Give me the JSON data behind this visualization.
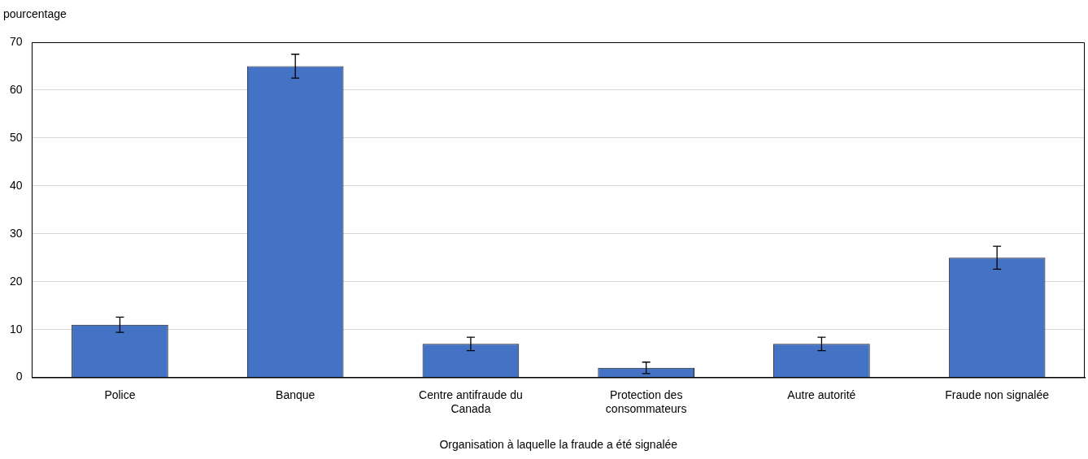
{
  "chart_data": {
    "type": "bar",
    "ylabel": "pourcentage",
    "xlabel": "Organisation à laquelle la fraude a été signalée",
    "categories": [
      "Police",
      "Banque",
      "Centre antifraude du Canada",
      "Protection des consommateurs",
      "Autre autorité",
      "Fraude non signalée"
    ],
    "values": [
      11,
      65,
      7,
      2,
      7,
      25
    ],
    "errors": [
      1.6,
      2.5,
      1.4,
      1.2,
      1.4,
      2.4
    ],
    "color": "#4472c4",
    "ylim": [
      0,
      70
    ],
    "yticks": [
      0,
      10,
      20,
      30,
      40,
      50,
      60,
      70
    ],
    "grid": "y",
    "legend": false
  }
}
